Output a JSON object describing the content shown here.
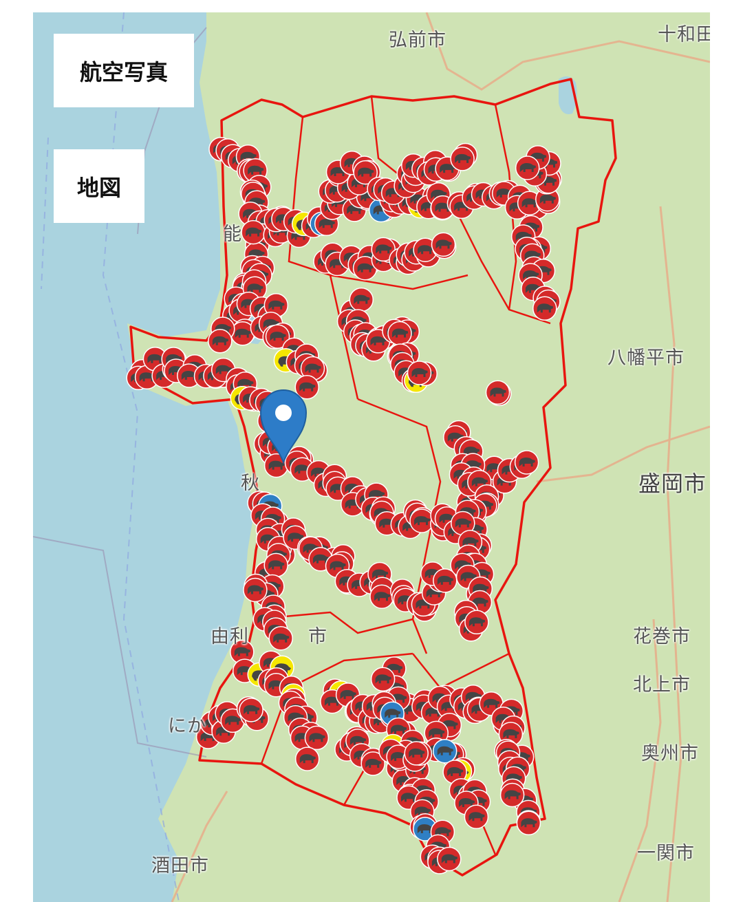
{
  "layer_buttons": {
    "aerial_photo": "航空写真",
    "map": "地図"
  },
  "place_labels": {
    "hirosaki": "弘前市",
    "towada": "十和田",
    "hachimantai": "八幡平市",
    "morioka": "盛岡市",
    "hanamaki": "花巻市",
    "kitakami": "北上市",
    "oshu": "奥州市",
    "ichinoseki": "一関市",
    "sakata": "酒田市",
    "nikaho": "にか",
    "yurihonjo": "由利",
    "yurihonjo_suffix": "市",
    "akita": "秋",
    "noshiro": "能"
  },
  "markers": {
    "bear": {
      "icon": "bear-icon",
      "color": "#d42a2a"
    },
    "boar": {
      "icon": "boar-icon",
      "color": "#f5e600"
    },
    "other": {
      "icon": "animal-icon",
      "color": "#2f7fc4"
    },
    "location_pin": {
      "icon": "map-pin-icon",
      "color": "#2d7cc8"
    }
  },
  "colors": {
    "sea": "#aad3df",
    "land": "#cfe3b4",
    "prefecture_border": "#e8150f"
  }
}
